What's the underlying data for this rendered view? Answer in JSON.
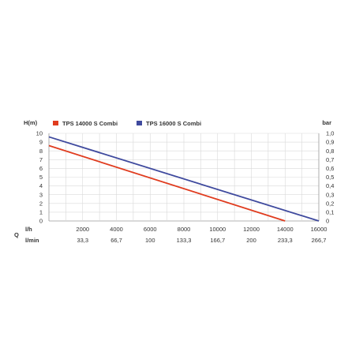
{
  "chart_data": {
    "type": "line",
    "title": "",
    "ylabel_left": "H(m)",
    "ylabel_right": "bar",
    "x_row_label": "l/h",
    "x2_row_label": "l/min",
    "x_axis_symbol": "Q",
    "ylim": [
      0,
      10
    ],
    "ylim_right": [
      0,
      1.0
    ],
    "xlim": [
      0,
      16000
    ],
    "grid": true,
    "legend_position": "top-left",
    "y_ticks_left": [
      "0",
      "1",
      "2",
      "3",
      "4",
      "5",
      "6",
      "7",
      "8",
      "9",
      "10"
    ],
    "y_ticks_right": [
      "0",
      "0,1",
      "0,2",
      "0,3",
      "0,4",
      "0,5",
      "0,6",
      "0,7",
      "0,8",
      "0,9",
      "1,0"
    ],
    "x_ticks": [
      {
        "value": 2000,
        "label": "2000"
      },
      {
        "value": 4000,
        "label": "4000"
      },
      {
        "value": 6000,
        "label": "6000"
      },
      {
        "value": 8000,
        "label": "8000"
      },
      {
        "value": 10000,
        "label": "10000"
      },
      {
        "value": 12000,
        "label": "12000"
      },
      {
        "value": 14000,
        "label": "14000"
      },
      {
        "value": 16000,
        "label": "16000"
      }
    ],
    "x2_ticks": [
      {
        "value": 2000,
        "label": "33,3"
      },
      {
        "value": 4000,
        "label": "66,7"
      },
      {
        "value": 6000,
        "label": "100"
      },
      {
        "value": 8000,
        "label": "133,3"
      },
      {
        "value": 10000,
        "label": "166,7"
      },
      {
        "value": 12000,
        "label": "200"
      },
      {
        "value": 14000,
        "label": "233,3"
      },
      {
        "value": 16000,
        "label": "266,7"
      }
    ],
    "series": [
      {
        "name": "TPS 14000 S Combi",
        "color": "#e03c1f",
        "x": [
          0,
          14000
        ],
        "y": [
          8.6,
          0.0
        ]
      },
      {
        "name": "TPS 16000 S Combi",
        "color": "#3f4a9e",
        "x": [
          0,
          16000
        ],
        "y": [
          9.6,
          0.0
        ]
      }
    ]
  }
}
